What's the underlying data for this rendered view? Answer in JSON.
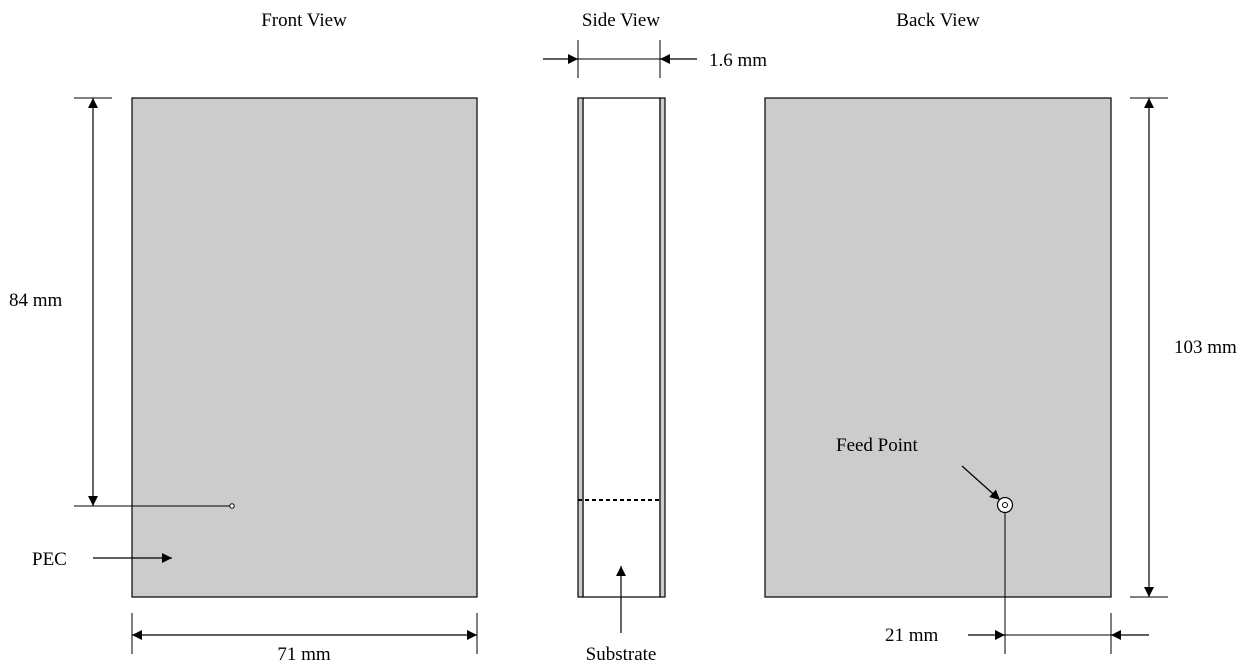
{
  "views": {
    "front": "Front View",
    "side": "Side View",
    "back": "Back View"
  },
  "dimensions": {
    "thickness": "1.6 mm",
    "feed_height": "84 mm",
    "total_height": "103 mm",
    "width": "71 mm",
    "feed_offset": "21 mm"
  },
  "labels": {
    "pec": "PEC",
    "substrate": "Substrate",
    "feed_point": "Feed Point"
  },
  "colors": {
    "plate_fill": "#cccccc",
    "line": "#000000",
    "background": "#ffffff"
  }
}
